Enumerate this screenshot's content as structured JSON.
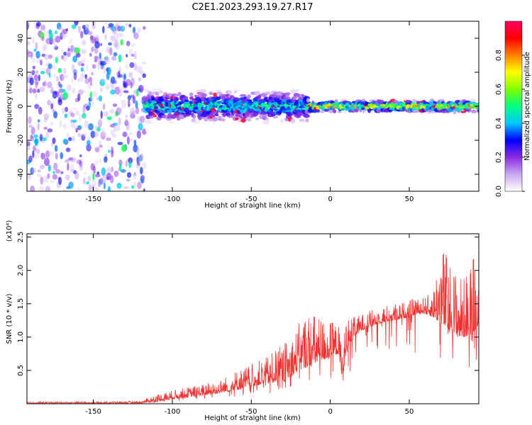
{
  "title": "C2E1.2023.293.19.27.R17",
  "chart_data": [
    {
      "type": "heatmap",
      "title": "C2E1.2023.293.19.27.R17",
      "xlabel": "Height of straight line (km)",
      "ylabel": "Frequency (Hz)",
      "xlim": [
        -192,
        94
      ],
      "ylim": [
        -50,
        50
      ],
      "xticks": [
        -150,
        -100,
        -50,
        0,
        50
      ],
      "yticks": [
        -40,
        -20,
        0,
        20,
        40
      ],
      "colorbar": {
        "label": "Normalized spectral amplitude",
        "range": [
          0,
          1
        ],
        "ticks": [
          "0.0",
          "0.2",
          "0.4",
          "0.6",
          "0.8"
        ],
        "colormap": [
          "#ffffff",
          "#c9a8f0",
          "#8a2be2",
          "#0000ff",
          "#00c8ff",
          "#00ff80",
          "#7fff00",
          "#ffff00",
          "#ff8000",
          "#ff0000",
          "#ff0060"
        ]
      },
      "regions": [
        {
          "x": [
            -192,
            -118
          ],
          "freq_spread": 50,
          "amplitude": 0.15,
          "description_type": "noise"
        },
        {
          "x": [
            -118,
            -15
          ],
          "freq_spread": 8,
          "amplitude": 0.45
        },
        {
          "x": [
            -15,
            94
          ],
          "freq_spread": 3,
          "amplitude": 0.7
        }
      ]
    },
    {
      "type": "line",
      "xlabel": "Height of straight line (km)",
      "ylabel": "SNR (10 * v/v)",
      "y_multiplier_label": "(x10⁴)",
      "xlim": [
        -192,
        94
      ],
      "ylim": [
        0,
        2.55
      ],
      "xticks": [
        -150,
        -100,
        -50,
        0,
        50
      ],
      "yticks": [
        0.5,
        1.0,
        1.5,
        2.0,
        2.5
      ],
      "series_color": "#ee3333",
      "envelope": {
        "x": [
          -192,
          -150,
          -120,
          -110,
          -100,
          -90,
          -80,
          -70,
          -60,
          -50,
          -40,
          -30,
          -25,
          -20,
          -15,
          -10,
          -5,
          0,
          5,
          8,
          10,
          15,
          20,
          30,
          40,
          50,
          55,
          60,
          65,
          70,
          75,
          80,
          85,
          90,
          94
        ],
        "base": [
          0.01,
          0.01,
          0.01,
          0.03,
          0.07,
          0.1,
          0.13,
          0.16,
          0.2,
          0.26,
          0.3,
          0.35,
          0.4,
          0.5,
          0.55,
          0.6,
          0.65,
          0.7,
          0.75,
          0.3,
          0.8,
          1.0,
          1.1,
          1.2,
          1.25,
          1.3,
          1.35,
          1.35,
          1.3,
          1.2,
          1.1,
          1.0,
          1.0,
          1.05,
          1.2
        ],
        "peak": [
          0.03,
          0.03,
          0.04,
          0.15,
          0.2,
          0.25,
          0.3,
          0.35,
          0.5,
          0.6,
          0.7,
          0.9,
          1.0,
          1.2,
          1.4,
          1.35,
          1.3,
          1.25,
          1.2,
          0.9,
          1.3,
          1.3,
          1.35,
          1.45,
          1.5,
          1.55,
          1.6,
          1.6,
          1.7,
          2.45,
          2.2,
          2.0,
          1.9,
          2.3,
          2.55
        ]
      }
    }
  ]
}
